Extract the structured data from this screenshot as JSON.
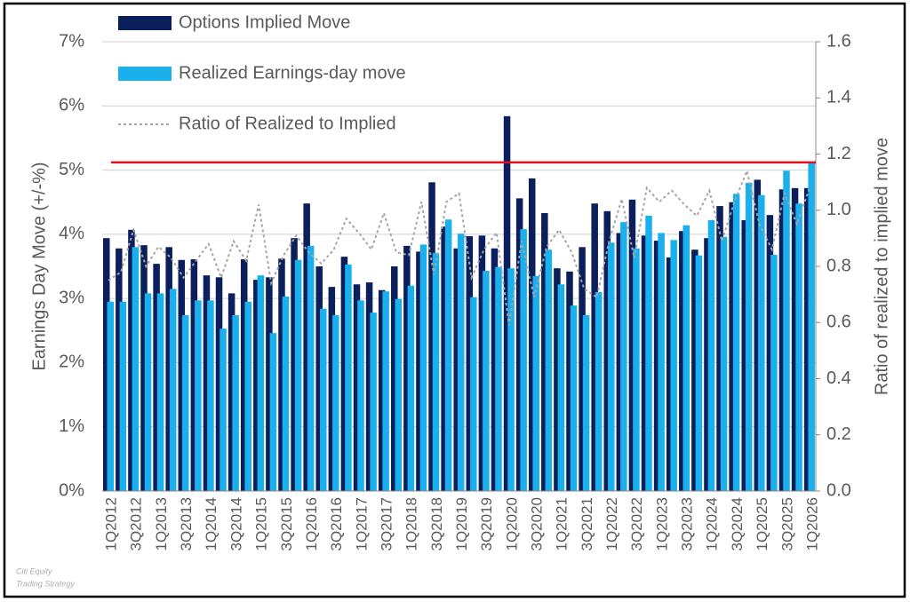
{
  "chart_data": {
    "type": "bar",
    "y_label": "Earnings Day Move (+/-%)",
    "y2_label": "Ratio of realized to implied move",
    "categories": [
      "1Q2012",
      null,
      "3Q2012",
      null,
      "1Q2013",
      null,
      "3Q2013",
      null,
      "1Q2014",
      null,
      "3Q2014",
      null,
      "1Q2015",
      null,
      "3Q2015",
      null,
      "1Q2016",
      null,
      "3Q2016",
      null,
      "1Q2017",
      null,
      "3Q2017",
      null,
      "1Q2018",
      null,
      "3Q2018",
      null,
      "1Q2019",
      null,
      "3Q2019",
      null,
      "1Q2020",
      null,
      "3Q2020",
      null,
      "1Q2021",
      null,
      "3Q2021",
      null,
      "1Q2022",
      null,
      "3Q2022",
      null,
      "1Q2023",
      null,
      "3Q2023",
      null,
      "1Q2024",
      null,
      "3Q2024",
      null,
      "1Q2025",
      null,
      "3Q2025",
      null,
      "1Q2026"
    ],
    "series": [
      {
        "name": "Options Implied Move",
        "type": "bar",
        "color": "#0b1f5c",
        "values": [
          3.94,
          3.78,
          4.07,
          3.83,
          3.54,
          3.8,
          3.6,
          3.61,
          3.36,
          3.33,
          3.08,
          3.61,
          3.29,
          3.33,
          3.62,
          3.94,
          4.48,
          3.5,
          3.18,
          3.65,
          3.22,
          3.25,
          3.13,
          3.5,
          3.82,
          3.73,
          4.81,
          4.12,
          3.78,
          3.97,
          3.98,
          3.78,
          5.84,
          4.56,
          4.87,
          4.33,
          3.47,
          3.42,
          3.8,
          4.48,
          4.36,
          4.02,
          4.54,
          3.98,
          3.9,
          3.64,
          4.05,
          3.76,
          3.94,
          4.44,
          4.5,
          4.22,
          4.85,
          4.3,
          4.7,
          4.72,
          4.72
        ]
      },
      {
        "name": "Realized Earnings-day move",
        "type": "bar",
        "color": "#1ab0ee",
        "values": [
          2.95,
          2.95,
          3.8,
          3.08,
          3.08,
          3.15,
          2.74,
          2.97,
          2.97,
          2.53,
          2.74,
          2.95,
          3.36,
          2.46,
          3.03,
          3.6,
          3.82,
          2.84,
          2.74,
          3.53,
          2.97,
          2.78,
          3.11,
          2.99,
          3.2,
          3.84,
          3.71,
          4.23,
          4.01,
          3.02,
          3.43,
          3.49,
          3.47,
          4.08,
          3.35,
          3.76,
          3.22,
          2.89,
          2.74,
          3.1,
          3.87,
          4.19,
          3.78,
          4.29,
          4.02,
          3.91,
          4.14,
          3.67,
          4.22,
          3.96,
          4.63,
          4.8,
          4.61,
          3.68,
          4.99,
          4.48,
          5.12
        ]
      },
      {
        "name": "Ratio of Realized to Implied",
        "type": "line",
        "axis": "y2",
        "color": "#a6a6a6",
        "values": [
          0.75,
          0.78,
          0.93,
          0.8,
          0.87,
          0.83,
          0.76,
          0.82,
          0.88,
          0.76,
          0.89,
          0.82,
          1.02,
          0.74,
          0.84,
          0.91,
          0.85,
          0.81,
          0.86,
          0.97,
          0.92,
          0.86,
          0.99,
          0.85,
          0.84,
          1.03,
          0.77,
          1.03,
          1.06,
          0.76,
          0.86,
          0.92,
          0.59,
          0.89,
          0.69,
          0.87,
          0.93,
          0.85,
          0.72,
          0.69,
          0.89,
          1.04,
          0.83,
          1.08,
          1.03,
          1.07,
          1.02,
          0.98,
          1.07,
          0.89,
          1.03,
          1.14,
          0.95,
          0.86,
          1.06,
          0.95,
          1.08
        ]
      }
    ],
    "hline": {
      "value": 5.12,
      "color": "#e0101e"
    },
    "ylim": [
      0,
      7
    ],
    "yticks": [
      {
        "value": 0,
        "label": "0%"
      },
      {
        "value": 1,
        "label": "1%"
      },
      {
        "value": 2,
        "label": "2%"
      },
      {
        "value": 3,
        "label": "3%"
      },
      {
        "value": 4,
        "label": "4%"
      },
      {
        "value": 5,
        "label": "5%"
      },
      {
        "value": 6,
        "label": "6%"
      },
      {
        "value": 7,
        "label": "7%"
      }
    ],
    "y2lim": [
      0,
      1.6
    ],
    "y2ticks": [
      {
        "value": 0,
        "label": "0.0"
      },
      0.2,
      0.4,
      0.6,
      0.8,
      {
        "value": 1,
        "label": "1.0"
      },
      1.2,
      1.4,
      1.6
    ],
    "grid": true,
    "legend": "upper-left",
    "source": [
      "Citi Equity",
      "Trading Strategy"
    ]
  }
}
